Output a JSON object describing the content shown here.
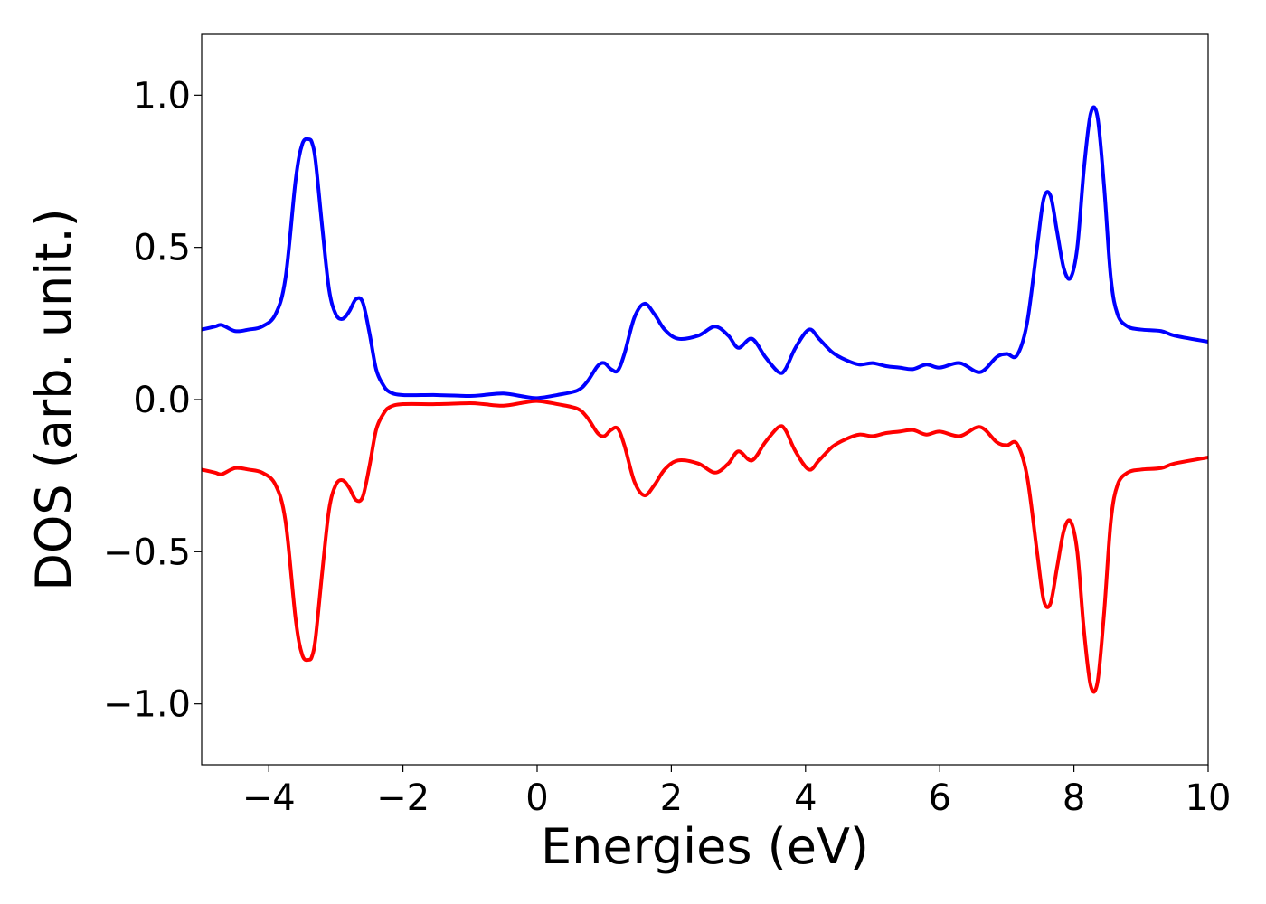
{
  "chart_data": {
    "type": "line",
    "xlabel": "Energies (eV)",
    "ylabel": "DOS (arb. unit.)",
    "xlim": [
      -5,
      10
    ],
    "ylim": [
      -1.2,
      1.2
    ],
    "grid": false,
    "x_ticks": [
      -4,
      -2,
      0,
      2,
      4,
      6,
      8,
      10
    ],
    "x_tick_labels": [
      "−4",
      "−2",
      "0",
      "2",
      "4",
      "6",
      "8",
      "10"
    ],
    "y_ticks": [
      -1.0,
      -0.5,
      0.0,
      0.5,
      1.0
    ],
    "y_tick_labels": [
      "−1.0",
      "−0.5",
      "0.0",
      "0.5",
      "1.0"
    ],
    "series": [
      {
        "color": "#0000ff",
        "x": [
          -5.0,
          -4.8,
          -4.7,
          -4.5,
          -4.3,
          -4.1,
          -3.9,
          -3.75,
          -3.6,
          -3.5,
          -3.4,
          -3.35,
          -3.3,
          -3.2,
          -3.1,
          -3.0,
          -2.9,
          -2.8,
          -2.7,
          -2.6,
          -2.5,
          -2.4,
          -2.3,
          -2.2,
          -2.0,
          -1.5,
          -1.0,
          -0.8,
          -0.5,
          -0.2,
          0.0,
          0.3,
          0.6,
          0.75,
          0.9,
          1.0,
          1.1,
          1.2,
          1.3,
          1.45,
          1.6,
          1.75,
          1.9,
          2.1,
          2.4,
          2.65,
          2.85,
          3.0,
          3.2,
          3.4,
          3.6,
          3.7,
          3.85,
          4.05,
          4.2,
          4.4,
          4.6,
          4.8,
          5.0,
          5.2,
          5.4,
          5.6,
          5.8,
          6.0,
          6.3,
          6.6,
          6.85,
          7.0,
          7.15,
          7.3,
          7.45,
          7.55,
          7.65,
          7.75,
          7.85,
          7.95,
          8.05,
          8.15,
          8.25,
          8.35,
          8.45,
          8.55,
          8.65,
          8.8,
          9.0,
          9.3,
          9.5,
          10.0
        ],
        "y": [
          0.23,
          0.24,
          0.245,
          0.225,
          0.23,
          0.24,
          0.28,
          0.4,
          0.72,
          0.84,
          0.855,
          0.84,
          0.78,
          0.56,
          0.36,
          0.28,
          0.265,
          0.29,
          0.33,
          0.32,
          0.22,
          0.1,
          0.05,
          0.025,
          0.015,
          0.015,
          0.012,
          0.015,
          0.02,
          0.01,
          0.005,
          0.015,
          0.03,
          0.06,
          0.11,
          0.12,
          0.1,
          0.095,
          0.15,
          0.27,
          0.315,
          0.28,
          0.23,
          0.2,
          0.21,
          0.24,
          0.21,
          0.17,
          0.2,
          0.14,
          0.09,
          0.1,
          0.17,
          0.23,
          0.2,
          0.155,
          0.13,
          0.115,
          0.12,
          0.11,
          0.105,
          0.1,
          0.115,
          0.105,
          0.12,
          0.09,
          0.14,
          0.15,
          0.145,
          0.25,
          0.5,
          0.66,
          0.67,
          0.55,
          0.43,
          0.4,
          0.5,
          0.76,
          0.94,
          0.93,
          0.7,
          0.4,
          0.28,
          0.24,
          0.23,
          0.225,
          0.21,
          0.19
        ]
      },
      {
        "color": "#ff0000",
        "x": [
          -5.0,
          -4.8,
          -4.7,
          -4.5,
          -4.3,
          -4.1,
          -3.9,
          -3.75,
          -3.6,
          -3.5,
          -3.4,
          -3.35,
          -3.3,
          -3.2,
          -3.1,
          -3.0,
          -2.9,
          -2.8,
          -2.7,
          -2.6,
          -2.5,
          -2.4,
          -2.3,
          -2.2,
          -2.0,
          -1.5,
          -1.0,
          -0.8,
          -0.5,
          -0.2,
          0.0,
          0.3,
          0.6,
          0.75,
          0.9,
          1.0,
          1.1,
          1.2,
          1.3,
          1.45,
          1.6,
          1.75,
          1.9,
          2.1,
          2.4,
          2.65,
          2.85,
          3.0,
          3.2,
          3.4,
          3.6,
          3.7,
          3.85,
          4.05,
          4.2,
          4.4,
          4.6,
          4.8,
          5.0,
          5.2,
          5.4,
          5.6,
          5.8,
          6.0,
          6.3,
          6.6,
          6.85,
          7.0,
          7.15,
          7.3,
          7.45,
          7.55,
          7.65,
          7.75,
          7.85,
          7.95,
          8.05,
          8.15,
          8.25,
          8.35,
          8.45,
          8.55,
          8.65,
          8.8,
          9.0,
          9.3,
          9.5,
          10.0
        ],
        "y": [
          -0.23,
          -0.24,
          -0.245,
          -0.225,
          -0.23,
          -0.24,
          -0.28,
          -0.4,
          -0.72,
          -0.84,
          -0.855,
          -0.84,
          -0.78,
          -0.56,
          -0.36,
          -0.28,
          -0.265,
          -0.29,
          -0.33,
          -0.32,
          -0.22,
          -0.1,
          -0.05,
          -0.025,
          -0.015,
          -0.015,
          -0.012,
          -0.015,
          -0.02,
          -0.01,
          -0.005,
          -0.015,
          -0.03,
          -0.06,
          -0.11,
          -0.12,
          -0.1,
          -0.095,
          -0.15,
          -0.27,
          -0.315,
          -0.28,
          -0.23,
          -0.2,
          -0.21,
          -0.24,
          -0.21,
          -0.17,
          -0.2,
          -0.14,
          -0.09,
          -0.1,
          -0.17,
          -0.23,
          -0.2,
          -0.155,
          -0.13,
          -0.115,
          -0.12,
          -0.11,
          -0.105,
          -0.1,
          -0.115,
          -0.105,
          -0.12,
          -0.09,
          -0.14,
          -0.15,
          -0.145,
          -0.25,
          -0.5,
          -0.66,
          -0.67,
          -0.55,
          -0.43,
          -0.4,
          -0.5,
          -0.76,
          -0.94,
          -0.93,
          -0.7,
          -0.4,
          -0.28,
          -0.24,
          -0.23,
          -0.225,
          -0.21,
          -0.19
        ]
      }
    ]
  }
}
